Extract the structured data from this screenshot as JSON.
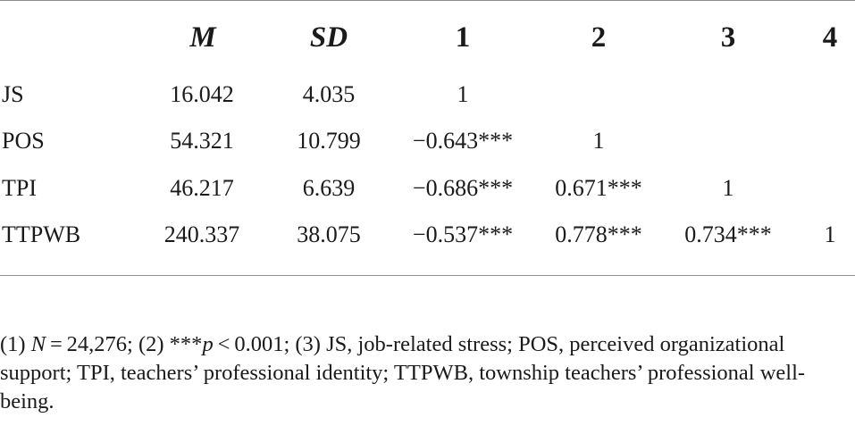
{
  "table": {
    "headers": [
      "M",
      "SD",
      "1",
      "2",
      "3",
      "4"
    ],
    "rows": [
      {
        "label": "JS",
        "cells": [
          "16.042",
          "4.035",
          "1",
          "",
          "",
          ""
        ]
      },
      {
        "label": "POS",
        "cells": [
          "54.321",
          "10.799",
          "−0.643***",
          "1",
          "",
          ""
        ]
      },
      {
        "label": "TPI",
        "cells": [
          "46.217",
          "6.639",
          "−0.686***",
          "0.671***",
          "1",
          ""
        ]
      },
      {
        "label": "TTPWB",
        "cells": [
          "240.337",
          "38.075",
          "−0.537***",
          "0.778***",
          "0.734***",
          "1"
        ]
      }
    ]
  },
  "note": {
    "p1": "(1) ",
    "n_symbol": "N",
    "p2": " = 24,276; (2) ***",
    "p_symbol": "p",
    "p3": " < 0.001; (3) JS, job-related stress; POS, perceived organizational support; TPI, teachers’ professional identity; TTPWB, township teachers’ professional well-being."
  }
}
